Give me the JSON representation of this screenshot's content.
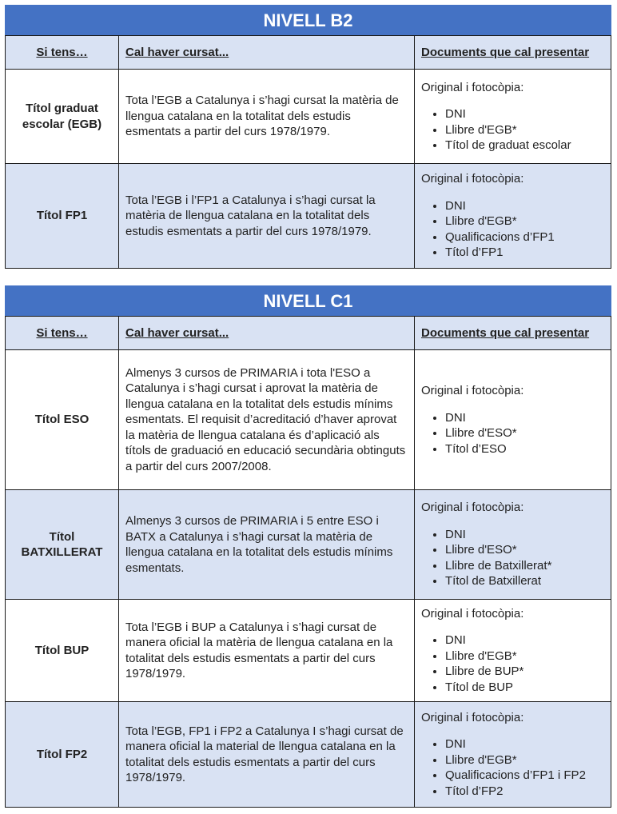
{
  "columns": [
    "Si tens…",
    "Cal haver cursat...",
    "Documents que cal presentar"
  ],
  "tables": [
    {
      "title": "NIVELL B2",
      "rows": [
        {
          "title": "Títol graduat escolar (EGB)",
          "required": "Tota l’EGB a Catalunya i s’hagi cursat la matèria de llengua catalana en la totalitat dels estudis esmentats a partir del curs 1978/1979.",
          "docs_intro": "Original i fotocòpia:",
          "docs": [
            "DNI",
            "Llibre d'EGB*",
            "Títol de graduat escolar"
          ],
          "shaded": false
        },
        {
          "title": "Títol FP1",
          "required": "Tota l’EGB i l’FP1 a Catalunya i s’hagi cursat la matèria de llengua catalana en la totalitat dels estudis esmentats a partir del curs 1978/1979.",
          "docs_intro": "Original i fotocòpia:",
          "docs": [
            "DNI",
            "Llibre d'EGB*",
            "Qualificacions d’FP1",
            "Títol d’FP1"
          ],
          "shaded": true
        }
      ]
    },
    {
      "title": "NIVELL C1",
      "rows": [
        {
          "title": "Títol ESO",
          "required": "Almenys 3 cursos de PRIMARIA i tota l'ESO a Catalunya i s’hagi cursat i aprovat la matèria de llengua catalana en la totalitat dels estudis mínims esmentats. El requisit d’acreditació d’haver aprovat la matèria de llengua catalana és d’aplicació als títols de graduació en educació secundària obtinguts a partir del curs 2007/2008.",
          "docs_intro": "Original i fotocòpia:",
          "docs": [
            "DNI",
            "Llibre d'ESO*",
            "Títol d’ESO"
          ],
          "shaded": false
        },
        {
          "title": "Títol BATXILLERAT",
          "required": "Almenys 3 cursos de PRIMARIA i 5 entre ESO i BATX a Catalunya i s’hagi cursat la matèria de llengua catalana en la totalitat dels estudis mínims esmentats.",
          "docs_intro": "Original i fotocòpia:",
          "docs": [
            "DNI",
            "Llibre d'ESO*",
            "Llibre de Batxillerat*",
            "Títol de Batxillerat"
          ],
          "shaded": true
        },
        {
          "title": "Títol BUP",
          "required": "Tota l’EGB i BUP a Catalunya i s’hagi cursat de manera oficial la matèria de llengua catalana en la totalitat dels estudis esmentats a partir del curs 1978/1979.",
          "docs_intro": "Original i fotocòpia:",
          "docs": [
            "DNI",
            "Llibre d'EGB*",
            "Llibre de BUP*",
            "Títol de BUP"
          ],
          "shaded": false
        },
        {
          "title": "Títol FP2",
          "required": "Tota l’EGB, FP1 i FP2 a Catalunya I s’hagi cursat de manera oficial la material de llengua catalana en la totalitat dels estudis esmentats a partir del curs 1978/1979.",
          "docs_intro": "Original i fotocòpia:",
          "docs": [
            "DNI",
            "Llibre d'EGB*",
            "Qualificacions d’FP1 i FP2",
            "Títol d’FP2"
          ],
          "shaded": true
        }
      ]
    }
  ],
  "colors": {
    "header": "#4472C4",
    "shade": "#D9E2F3"
  }
}
